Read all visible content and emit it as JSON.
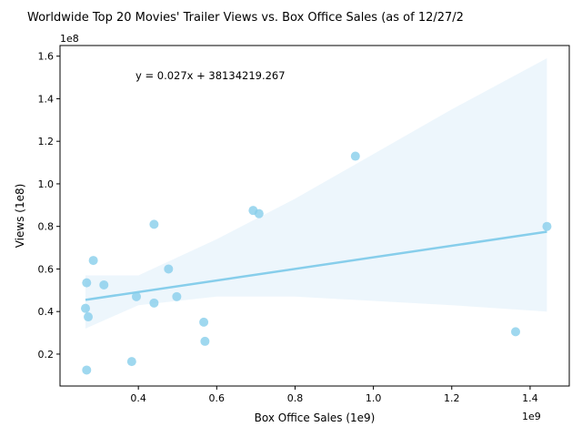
{
  "chart_data": {
    "type": "scatter",
    "title": "Worldwide Top 20 Movies' Trailer Views vs. Box Office Sales (as of 12/27/2",
    "xlabel": "Box Office Sales (1e9)",
    "ylabel": "Views (1e8)",
    "x_offset_label": "1e9",
    "y_offset_label": "1e8",
    "xlim": [
      0.2,
      1.5
    ],
    "ylim": [
      0.05,
      1.65
    ],
    "x_ticks": [
      0.4,
      0.6,
      0.8,
      1.0,
      1.2,
      1.4
    ],
    "x_tick_labels": [
      "0.4",
      "0.6",
      "0.8",
      "1.0",
      "1.2",
      "1.4"
    ],
    "y_ticks": [
      0.2,
      0.4,
      0.6,
      0.8,
      1.0,
      1.2,
      1.4,
      1.6
    ],
    "y_tick_labels": [
      "0.2",
      "0.4",
      "0.6",
      "0.8",
      "1.0",
      "1.2",
      "1.4",
      "1.6"
    ],
    "grid": false,
    "annotation": "y = 0.027x + 38134219.267",
    "point_color": "#87ceeb",
    "line_color": "#87ceeb",
    "band_color": "#cce6f5",
    "points": [
      {
        "x": 0.268,
        "y": 0.125
      },
      {
        "x": 0.383,
        "y": 0.165
      },
      {
        "x": 0.272,
        "y": 0.375
      },
      {
        "x": 0.265,
        "y": 0.415
      },
      {
        "x": 0.268,
        "y": 0.535
      },
      {
        "x": 0.285,
        "y": 0.64
      },
      {
        "x": 0.312,
        "y": 0.525
      },
      {
        "x": 0.395,
        "y": 0.47
      },
      {
        "x": 0.44,
        "y": 0.44
      },
      {
        "x": 0.44,
        "y": 0.81
      },
      {
        "x": 0.477,
        "y": 0.6
      },
      {
        "x": 0.498,
        "y": 0.47
      },
      {
        "x": 0.567,
        "y": 0.35
      },
      {
        "x": 0.57,
        "y": 0.26
      },
      {
        "x": 0.693,
        "y": 0.875
      },
      {
        "x": 0.708,
        "y": 0.86
      },
      {
        "x": 0.954,
        "y": 1.13
      },
      {
        "x": 1.363,
        "y": 0.305
      },
      {
        "x": 1.443,
        "y": 0.8
      }
    ],
    "regression": {
      "x": [
        0.265,
        1.443
      ],
      "y": [
        0.455,
        0.775
      ]
    },
    "confidence_band": {
      "x": [
        0.265,
        0.4,
        0.6,
        0.8,
        1.0,
        1.2,
        1.443
      ],
      "lower": [
        0.32,
        0.43,
        0.47,
        0.47,
        0.45,
        0.43,
        0.4
      ],
      "upper": [
        0.57,
        0.57,
        0.74,
        0.93,
        1.14,
        1.35,
        1.59
      ]
    }
  }
}
